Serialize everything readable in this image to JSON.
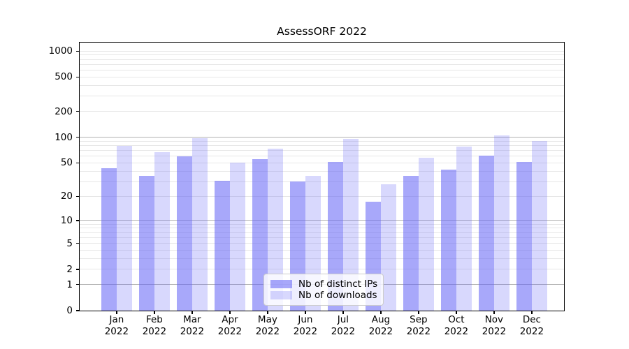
{
  "chart_data": {
    "type": "bar",
    "title": "AssessORF 2022",
    "categories": [
      "Jan 2022",
      "Feb 2022",
      "Mar 2022",
      "Apr 2022",
      "May 2022",
      "Jun 2022",
      "Jul 2022",
      "Aug 2022",
      "Sep 2022",
      "Oct 2022",
      "Nov 2022",
      "Dec 2022"
    ],
    "x_tick_line1": [
      "Jan",
      "Feb",
      "Mar",
      "Apr",
      "May",
      "Jun",
      "Jul",
      "Aug",
      "Sep",
      "Oct",
      "Nov",
      "Dec"
    ],
    "x_tick_line2": "2022",
    "series": [
      {
        "name": "Nb of distinct IPs",
        "color": "rgba(100,100,246,0.56)",
        "values": [
          43,
          35,
          60,
          31,
          55,
          30,
          51,
          17,
          35,
          42,
          61,
          51
        ]
      },
      {
        "name": "Nb of downloads",
        "color": "rgba(100,100,246,0.25)",
        "values": [
          80,
          67,
          97,
          50,
          73,
          35,
          96,
          28,
          58,
          78,
          105,
          91
        ]
      }
    ],
    "y_axis": {
      "scale": "log1p",
      "range": [
        0,
        1000
      ],
      "tick_values": [
        0,
        1,
        2,
        5,
        10,
        20,
        50,
        100,
        200,
        500,
        1000
      ],
      "tick_labels": [
        "0",
        "1",
        "2",
        "5",
        "10",
        "20",
        "50",
        "100",
        "200",
        "500",
        "1000"
      ],
      "minor_grid_values": [
        3,
        4,
        6,
        7,
        8,
        9,
        30,
        40,
        60,
        70,
        80,
        90,
        300,
        400,
        600,
        700,
        800,
        900
      ],
      "emphasized_grid_values": [
        1,
        10,
        100
      ]
    },
    "grid": true,
    "legend_position": "lower center",
    "colors": {
      "bar_dark_on_white": "#abaafa",
      "bar_light_on_white": "#d9d9fb",
      "major_grid": "#b2b2b2",
      "minor_grid": "#e7e7e7",
      "spine": "#000000",
      "text": "#000000"
    }
  }
}
